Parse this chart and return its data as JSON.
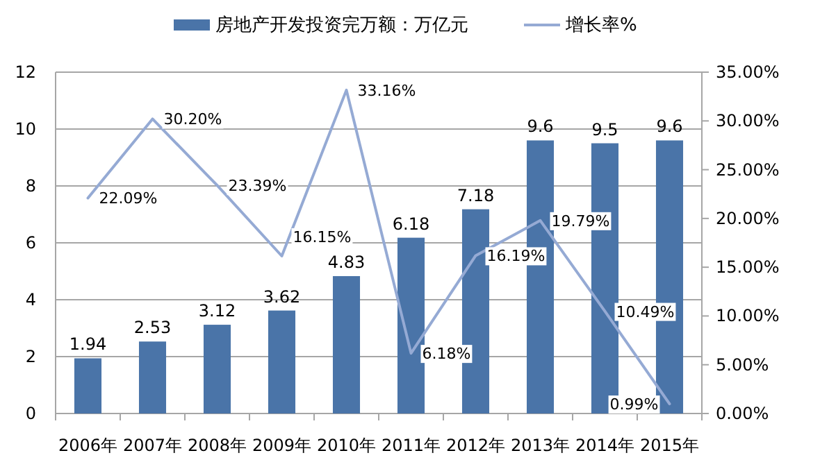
{
  "chart_data": {
    "type": "bar",
    "categories": [
      "2006年",
      "2007年",
      "2008年",
      "2009年",
      "2010年",
      "2011年",
      "2012年",
      "2013年",
      "2014年",
      "2015年"
    ],
    "series": [
      {
        "name": "房地产开发投资完万额：万亿元",
        "color": "#4a74a8",
        "values": [
          1.94,
          2.53,
          3.12,
          3.62,
          4.83,
          6.18,
          7.18,
          9.6,
          9.5,
          9.6
        ],
        "value_labels": [
          "1.94",
          "2.53",
          "3.12",
          "3.62",
          "4.83",
          "6.18",
          "7.18",
          "9.6",
          "9.5",
          "9.6"
        ]
      },
      {
        "name": "增长率%",
        "type": "line",
        "axis": "y2",
        "color": "#95aad4",
        "values": [
          22.09,
          30.2,
          23.39,
          16.15,
          33.16,
          6.18,
          16.19,
          19.79,
          10.49,
          0.99
        ],
        "value_labels": [
          "22.09%",
          "30.20%",
          "23.39%",
          "16.15%",
          "33.16%",
          "6.18%",
          "16.19%",
          "19.79%",
          "10.49%",
          "0.99%"
        ]
      }
    ],
    "ylim": [
      0,
      12
    ],
    "yticks": [
      0,
      2,
      4,
      6,
      8,
      10,
      12
    ],
    "y2lim": [
      0,
      35
    ],
    "y2ticks": [
      {
        "value": 0,
        "label": "0.00%"
      },
      {
        "value": 5,
        "label": "5.00%"
      },
      {
        "value": 10,
        "label": "10.00%"
      },
      {
        "value": 15,
        "label": "15.00%"
      },
      {
        "value": 20,
        "label": "20.00%"
      },
      {
        "value": 25,
        "label": "25.00%"
      },
      {
        "value": 30,
        "label": "30.00%"
      },
      {
        "value": 35,
        "label": "35.00%"
      }
    ],
    "grid": "y",
    "legend": "top",
    "marker": "none"
  }
}
